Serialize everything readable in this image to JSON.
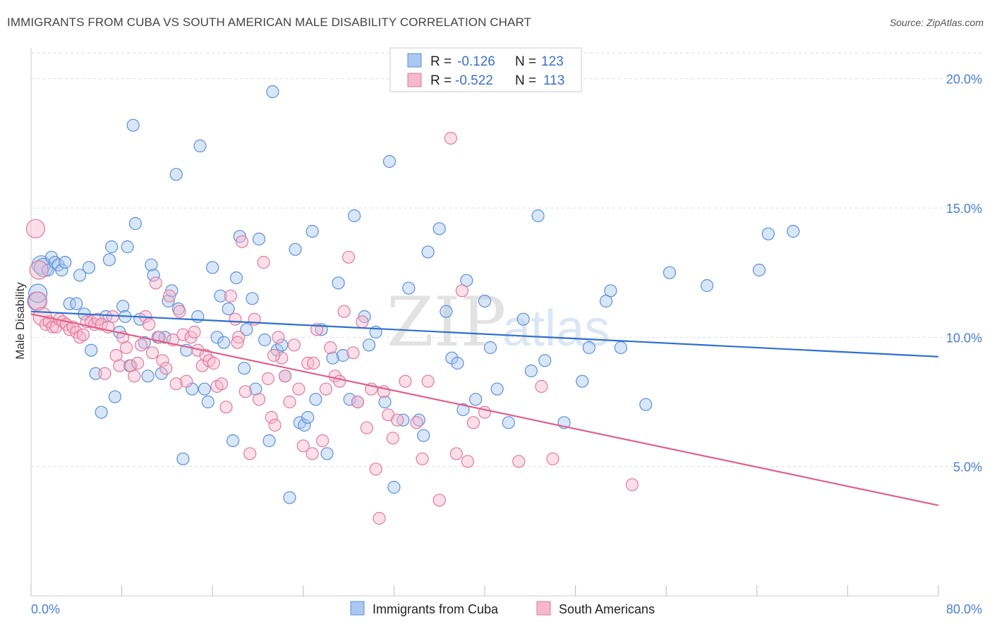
{
  "title": "IMMIGRANTS FROM CUBA VS SOUTH AMERICAN MALE DISABILITY CORRELATION CHART",
  "source": "Source: ZipAtlas.com",
  "watermark": {
    "zip": "ZIP",
    "atlas": "atlas"
  },
  "legend": {
    "r_label": "R =",
    "n_label": "N =",
    "rows": [
      {
        "r": "-0.126",
        "n": "123",
        "color": "#4a7fd1"
      },
      {
        "r": "-0.522",
        "n": "113",
        "color": "#e0608a"
      }
    ]
  },
  "colors": {
    "blue_fill": "#aac8f0",
    "blue_stroke": "#5a8fd8",
    "blue_line": "#2f6fcf",
    "pink_fill": "#f6b8cc",
    "pink_stroke": "#e07a9e",
    "pink_line": "#e0608a",
    "grid": "#dddddd",
    "axis_label": "#4a7fd1"
  },
  "chart_data": {
    "type": "scatter",
    "title": "IMMIGRANTS FROM CUBA VS SOUTH AMERICAN MALE DISABILITY CORRELATION CHART",
    "xlabel": "",
    "ylabel": "Male Disability",
    "xlim": [
      0,
      80
    ],
    "ylim": [
      0,
      21
    ],
    "x_tick_labels": [
      "0.0%",
      "80.0%"
    ],
    "y_ticks": [
      5,
      10,
      15,
      20
    ],
    "y_tick_labels": [
      "5.0%",
      "10.0%",
      "15.0%",
      "20.0%"
    ],
    "grid": "horizontal dashed",
    "legend_position": "bottom",
    "series": [
      {
        "name": "Immigrants from Cuba",
        "trend": {
          "x": [
            0,
            80
          ],
          "y": [
            11.0,
            9.25
          ]
        },
        "points": [
          [
            0.5,
            11.4
          ],
          [
            0.6,
            11.7
          ],
          [
            0.9,
            12.8
          ],
          [
            1.1,
            12.7
          ],
          [
            1.5,
            12.6
          ],
          [
            1.8,
            13.1
          ],
          [
            2.1,
            12.9
          ],
          [
            2.4,
            12.8
          ],
          [
            2.7,
            12.6
          ],
          [
            3.0,
            12.9
          ],
          [
            3.4,
            11.3
          ],
          [
            4.0,
            11.3
          ],
          [
            4.3,
            12.4
          ],
          [
            4.7,
            10.9
          ],
          [
            5.1,
            12.7
          ],
          [
            5.3,
            9.5
          ],
          [
            5.7,
            8.6
          ],
          [
            6.2,
            7.1
          ],
          [
            6.6,
            10.8
          ],
          [
            6.9,
            13.0
          ],
          [
            7.1,
            13.5
          ],
          [
            7.4,
            7.7
          ],
          [
            7.8,
            10.2
          ],
          [
            8.1,
            11.2
          ],
          [
            8.3,
            10.8
          ],
          [
            8.5,
            13.5
          ],
          [
            8.7,
            8.9
          ],
          [
            9.0,
            18.2
          ],
          [
            9.2,
            14.4
          ],
          [
            9.6,
            10.7
          ],
          [
            10.0,
            9.8
          ],
          [
            10.3,
            8.5
          ],
          [
            10.6,
            12.8
          ],
          [
            10.8,
            12.4
          ],
          [
            11.2,
            10.0
          ],
          [
            11.5,
            8.6
          ],
          [
            11.8,
            10.0
          ],
          [
            12.1,
            11.4
          ],
          [
            12.4,
            11.8
          ],
          [
            12.8,
            16.3
          ],
          [
            13.0,
            11.1
          ],
          [
            13.4,
            5.3
          ],
          [
            13.7,
            9.5
          ],
          [
            14.2,
            8.0
          ],
          [
            14.7,
            10.8
          ],
          [
            14.9,
            17.4
          ],
          [
            15.3,
            8.0
          ],
          [
            15.6,
            7.5
          ],
          [
            16.0,
            12.7
          ],
          [
            16.4,
            10.0
          ],
          [
            16.7,
            11.6
          ],
          [
            17.0,
            9.8
          ],
          [
            17.4,
            11.1
          ],
          [
            17.8,
            6.0
          ],
          [
            18.1,
            12.3
          ],
          [
            18.4,
            13.9
          ],
          [
            18.8,
            8.8
          ],
          [
            19.0,
            10.3
          ],
          [
            19.5,
            11.5
          ],
          [
            19.8,
            8.0
          ],
          [
            20.1,
            13.8
          ],
          [
            20.6,
            9.9
          ],
          [
            21.0,
            6.0
          ],
          [
            21.3,
            19.5
          ],
          [
            21.7,
            9.5
          ],
          [
            22.1,
            9.7
          ],
          [
            22.4,
            8.5
          ],
          [
            22.8,
            3.8
          ],
          [
            23.3,
            13.4
          ],
          [
            23.7,
            6.7
          ],
          [
            24.1,
            6.6
          ],
          [
            24.4,
            6.9
          ],
          [
            24.8,
            14.1
          ],
          [
            25.1,
            7.6
          ],
          [
            25.6,
            10.3
          ],
          [
            26.1,
            5.5
          ],
          [
            26.6,
            9.2
          ],
          [
            27.1,
            12.1
          ],
          [
            27.5,
            9.3
          ],
          [
            28.1,
            7.6
          ],
          [
            28.5,
            14.7
          ],
          [
            28.8,
            7.5
          ],
          [
            29.4,
            10.8
          ],
          [
            29.8,
            9.7
          ],
          [
            30.4,
            10.2
          ],
          [
            31.2,
            7.5
          ],
          [
            31.6,
            16.8
          ],
          [
            32.0,
            4.2
          ],
          [
            32.8,
            6.8
          ],
          [
            33.3,
            11.9
          ],
          [
            34.2,
            6.8
          ],
          [
            34.6,
            6.2
          ],
          [
            35.0,
            13.3
          ],
          [
            36.0,
            14.2
          ],
          [
            36.6,
            11.0
          ],
          [
            37.1,
            9.2
          ],
          [
            37.6,
            9.0
          ],
          [
            38.1,
            7.2
          ],
          [
            38.4,
            12.2
          ],
          [
            39.2,
            7.6
          ],
          [
            40.0,
            11.4
          ],
          [
            40.5,
            9.6
          ],
          [
            41.1,
            8.0
          ],
          [
            42.1,
            6.7
          ],
          [
            43.4,
            10.7
          ],
          [
            44.1,
            8.7
          ],
          [
            44.7,
            14.7
          ],
          [
            45.3,
            9.1
          ],
          [
            47.0,
            6.7
          ],
          [
            48.6,
            8.3
          ],
          [
            49.2,
            9.6
          ],
          [
            50.7,
            11.4
          ],
          [
            51.1,
            11.8
          ],
          [
            52.0,
            9.6
          ],
          [
            54.2,
            7.4
          ],
          [
            56.3,
            12.5
          ],
          [
            59.6,
            12.0
          ],
          [
            64.2,
            12.6
          ],
          [
            65.0,
            14.0
          ],
          [
            67.2,
            14.1
          ]
        ]
      },
      {
        "name": "South Americans",
        "trend": {
          "x": [
            0,
            80
          ],
          "y": [
            10.9,
            3.5
          ]
        },
        "points": [
          [
            0.4,
            14.2
          ],
          [
            0.6,
            11.4
          ],
          [
            0.7,
            12.6
          ],
          [
            1.0,
            10.8
          ],
          [
            1.3,
            10.5
          ],
          [
            1.6,
            10.6
          ],
          [
            1.9,
            10.4
          ],
          [
            2.2,
            10.4
          ],
          [
            2.5,
            10.7
          ],
          [
            2.8,
            10.6
          ],
          [
            3.1,
            10.5
          ],
          [
            3.4,
            10.3
          ],
          [
            3.7,
            10.4
          ],
          [
            4.0,
            10.2
          ],
          [
            4.3,
            10.0
          ],
          [
            4.6,
            10.1
          ],
          [
            4.9,
            10.6
          ],
          [
            5.3,
            10.6
          ],
          [
            5.6,
            10.5
          ],
          [
            5.9,
            10.7
          ],
          [
            6.2,
            10.5
          ],
          [
            6.5,
            8.6
          ],
          [
            6.8,
            10.4
          ],
          [
            7.2,
            10.8
          ],
          [
            7.5,
            9.3
          ],
          [
            7.8,
            8.9
          ],
          [
            8.1,
            10.0
          ],
          [
            8.4,
            9.6
          ],
          [
            8.8,
            8.9
          ],
          [
            9.1,
            8.5
          ],
          [
            9.4,
            9.0
          ],
          [
            9.7,
            9.7
          ],
          [
            10.1,
            10.8
          ],
          [
            10.4,
            10.5
          ],
          [
            10.7,
            9.4
          ],
          [
            11.0,
            12.1
          ],
          [
            11.3,
            10.0
          ],
          [
            11.6,
            9.1
          ],
          [
            11.9,
            8.8
          ],
          [
            12.2,
            11.6
          ],
          [
            12.5,
            9.9
          ],
          [
            12.8,
            8.2
          ],
          [
            13.1,
            11.0
          ],
          [
            13.4,
            10.1
          ],
          [
            13.7,
            8.3
          ],
          [
            14.1,
            10.0
          ],
          [
            14.4,
            10.2
          ],
          [
            14.7,
            9.5
          ],
          [
            15.1,
            8.9
          ],
          [
            15.4,
            9.3
          ],
          [
            15.7,
            9.1
          ],
          [
            16.1,
            9.0
          ],
          [
            16.4,
            8.1
          ],
          [
            16.8,
            8.2
          ],
          [
            17.2,
            7.3
          ],
          [
            17.6,
            11.6
          ],
          [
            18.0,
            10.7
          ],
          [
            18.3,
            10.0
          ],
          [
            18.6,
            13.7
          ],
          [
            18.9,
            7.9
          ],
          [
            19.3,
            5.5
          ],
          [
            19.7,
            10.7
          ],
          [
            20.1,
            7.6
          ],
          [
            20.5,
            12.9
          ],
          [
            20.9,
            8.4
          ],
          [
            21.2,
            6.9
          ],
          [
            21.5,
            6.6
          ],
          [
            21.8,
            10.0
          ],
          [
            22.1,
            9.2
          ],
          [
            22.4,
            8.5
          ],
          [
            22.8,
            7.5
          ],
          [
            23.2,
            9.7
          ],
          [
            23.6,
            8.0
          ],
          [
            24.0,
            5.8
          ],
          [
            24.4,
            9.0
          ],
          [
            24.8,
            5.5
          ],
          [
            25.2,
            10.3
          ],
          [
            25.7,
            6.0
          ],
          [
            26.0,
            8.0
          ],
          [
            26.4,
            9.6
          ],
          [
            26.8,
            8.5
          ],
          [
            27.2,
            8.3
          ],
          [
            27.6,
            11.0
          ],
          [
            28.0,
            13.1
          ],
          [
            28.4,
            9.4
          ],
          [
            28.8,
            7.5
          ],
          [
            29.2,
            10.6
          ],
          [
            29.6,
            6.5
          ],
          [
            30.0,
            8.0
          ],
          [
            30.4,
            4.9
          ],
          [
            30.7,
            3.0
          ],
          [
            31.1,
            7.9
          ],
          [
            31.5,
            7.0
          ],
          [
            31.9,
            6.1
          ],
          [
            32.3,
            6.8
          ],
          [
            33.0,
            8.3
          ],
          [
            34.0,
            6.7
          ],
          [
            34.5,
            5.3
          ],
          [
            35.0,
            8.3
          ],
          [
            36.0,
            3.7
          ],
          [
            37.0,
            17.7
          ],
          [
            37.5,
            5.5
          ],
          [
            38.0,
            11.8
          ],
          [
            38.5,
            5.2
          ],
          [
            39.0,
            6.7
          ],
          [
            40.0,
            7.1
          ],
          [
            43.0,
            5.2
          ],
          [
            45.0,
            8.1
          ],
          [
            46.0,
            5.3
          ],
          [
            53.0,
            4.3
          ],
          [
            18.2,
            9.8
          ],
          [
            21.4,
            9.3
          ],
          [
            24.9,
            9.0
          ]
        ]
      }
    ]
  },
  "bottom_legend": [
    {
      "label": "Immigrants from Cuba"
    },
    {
      "label": "South Americans"
    }
  ]
}
